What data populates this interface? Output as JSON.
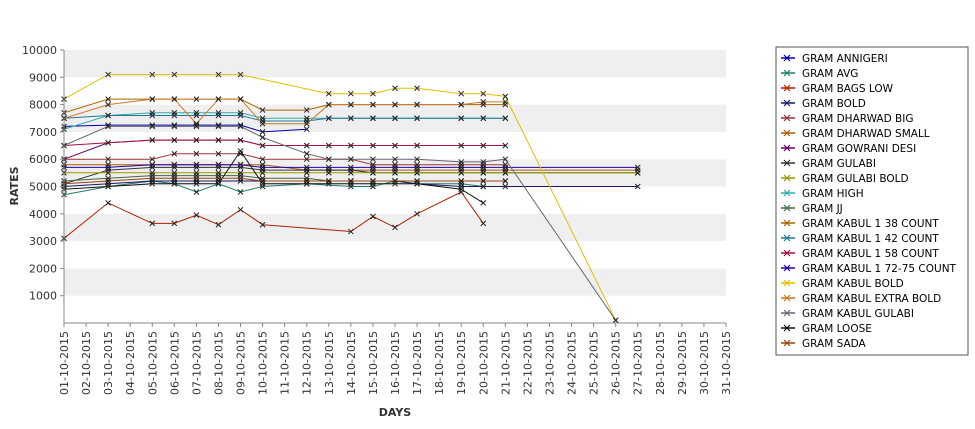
{
  "chart_data": {
    "type": "line",
    "xlabel": "DAYS",
    "ylabel": "RATES",
    "ylim": [
      0,
      10000
    ],
    "yticks": [
      1000,
      2000,
      3000,
      4000,
      5000,
      6000,
      7000,
      8000,
      9000,
      10000
    ],
    "grid": "alternating horizontal bands",
    "legend_position": "right",
    "categories": [
      "01-10-2015",
      "02-10-2015",
      "03-10-2015",
      "04-10-2015",
      "05-10-2015",
      "06-10-2015",
      "07-10-2015",
      "08-10-2015",
      "09-10-2015",
      "10-10-2015",
      "11-10-2015",
      "12-10-2015",
      "13-10-2015",
      "14-10-2015",
      "15-10-2015",
      "16-10-2015",
      "17-10-2015",
      "18-10-2015",
      "19-10-2015",
      "20-10-2015",
      "21-10-2015",
      "22-10-2015",
      "23-10-2015",
      "24-10-2015",
      "25-10-2015",
      "26-10-2015",
      "27-10-2015",
      "28-10-2015",
      "29-10-2015",
      "30-10-2015",
      "31-10-2015"
    ],
    "series": [
      {
        "name": "GRAM ANNIGERI",
        "color": "#0000aa",
        "values": [
          7200,
          null,
          7250,
          null,
          7250,
          7250,
          7250,
          7250,
          7250,
          7000,
          null,
          7100,
          null,
          null,
          null,
          null,
          null,
          null,
          null,
          null,
          null,
          null,
          null,
          null,
          null,
          null,
          null,
          null,
          null,
          null,
          null
        ]
      },
      {
        "name": "GRAM AVG",
        "color": "#1a7f6e",
        "values": [
          4700,
          null,
          5000,
          null,
          5200,
          5100,
          4800,
          5100,
          4800,
          5000,
          null,
          5100,
          null,
          5000,
          5000,
          5200,
          5100,
          null,
          5100,
          5000,
          null,
          null,
          null,
          null,
          null,
          null,
          null,
          null,
          null,
          null,
          null
        ]
      },
      {
        "name": "GRAM BAGS LOW",
        "color": "#aa2200",
        "values": [
          3100,
          null,
          4400,
          null,
          3650,
          3650,
          3950,
          3600,
          4150,
          3600,
          null,
          null,
          null,
          3350,
          3900,
          3500,
          4000,
          null,
          4800,
          3650,
          null,
          null,
          null,
          null,
          null,
          null,
          null,
          null,
          null,
          null,
          null
        ]
      },
      {
        "name": "GRAM BOLD",
        "color": "#1a1a66",
        "values": [
          5000,
          null,
          5100,
          null,
          5200,
          5200,
          5200,
          5200,
          5200,
          5200,
          null,
          5200,
          5200,
          5200,
          5200,
          5200,
          5100,
          null,
          5000,
          5000,
          5000,
          null,
          null,
          null,
          null,
          null,
          5000,
          null,
          null,
          null,
          null
        ]
      },
      {
        "name": "GRAM DHARWAD BIG",
        "color": "#993333",
        "values": [
          6000,
          null,
          6000,
          null,
          6000,
          6200,
          6200,
          6200,
          6200,
          6000,
          null,
          6000,
          6000,
          6000,
          5800,
          5800,
          5800,
          null,
          5800,
          5800,
          5800,
          null,
          null,
          null,
          null,
          null,
          null,
          null,
          null,
          null,
          null
        ]
      },
      {
        "name": "GRAM DHARWAD SMALL",
        "color": "#b35900",
        "values": [
          5800,
          null,
          5800,
          null,
          5800,
          5800,
          5800,
          5800,
          5800,
          5800,
          null,
          5600,
          5600,
          5600,
          5600,
          5600,
          5600,
          null,
          5600,
          5600,
          5600,
          null,
          null,
          null,
          null,
          null,
          5600,
          null,
          null,
          null,
          null
        ]
      },
      {
        "name": "GRAM GOWRANI DESI",
        "color": "#660066",
        "values": [
          6000,
          null,
          6600,
          null,
          6700,
          6700,
          6700,
          6700,
          6700,
          6500,
          null,
          6500,
          6500,
          6500,
          6500,
          6500,
          6500,
          null,
          6500,
          6500,
          6500,
          null,
          null,
          null,
          null,
          null,
          null,
          null,
          null,
          null,
          null
        ]
      },
      {
        "name": "GRAM GULABI",
        "color": "#333333",
        "values": [
          5100,
          null,
          5600,
          null,
          5700,
          5700,
          5700,
          5700,
          5700,
          5600,
          null,
          5600,
          5600,
          5600,
          5500,
          5500,
          5500,
          null,
          5500,
          5500,
          5500,
          null,
          null,
          null,
          null,
          null,
          5500,
          null,
          null,
          null,
          null
        ]
      },
      {
        "name": "GRAM GULABI BOLD",
        "color": "#999900",
        "values": [
          5500,
          null,
          5500,
          null,
          5500,
          5500,
          5500,
          5500,
          5500,
          5500,
          null,
          5500,
          5500,
          5500,
          5500,
          5500,
          5500,
          null,
          5500,
          5500,
          5500,
          null,
          null,
          null,
          null,
          null,
          5500,
          null,
          null,
          null,
          null
        ]
      },
      {
        "name": "GRAM HIGH",
        "color": "#33aaaa",
        "values": [
          7100,
          null,
          7600,
          null,
          7700,
          7700,
          7700,
          7700,
          7700,
          7500,
          null,
          7500,
          7500,
          7500,
          7500,
          7500,
          7500,
          null,
          7500,
          7500,
          7500,
          null,
          null,
          null,
          null,
          null,
          null,
          null,
          null,
          null,
          null
        ]
      },
      {
        "name": "GRAM JJ",
        "color": "#446644",
        "values": [
          5200,
          null,
          5300,
          null,
          5400,
          5400,
          5400,
          5400,
          5400,
          5300,
          null,
          5300,
          5200,
          5200,
          5200,
          5200,
          5200,
          null,
          5200,
          5200,
          5200,
          null,
          null,
          null,
          null,
          null,
          null,
          null,
          null,
          null,
          null
        ]
      },
      {
        "name": "GRAM KABUL 1 38 COUNT",
        "color": "#aa6600",
        "values": [
          7700,
          null,
          8200,
          null,
          8200,
          8200,
          8200,
          8200,
          8200,
          7800,
          null,
          7800,
          8000,
          8000,
          8000,
          8000,
          8000,
          null,
          8000,
          8000,
          8000,
          null,
          null,
          null,
          null,
          null,
          null,
          null,
          null,
          null,
          null
        ]
      },
      {
        "name": "GRAM KABUL 1 42 COUNT",
        "color": "#227799",
        "values": [
          7500,
          null,
          7600,
          null,
          7600,
          7600,
          7600,
          7600,
          7600,
          7400,
          null,
          7400,
          7500,
          7500,
          7500,
          7500,
          7500,
          null,
          7500,
          7500,
          7500,
          null,
          null,
          null,
          null,
          null,
          null,
          null,
          null,
          null,
          null
        ]
      },
      {
        "name": "GRAM KABUL 1 58 COUNT",
        "color": "#aa1144",
        "values": [
          6500,
          null,
          6600,
          null,
          6700,
          6700,
          6700,
          6700,
          6700,
          6500,
          null,
          6500,
          6500,
          6500,
          6500,
          6500,
          6500,
          null,
          6500,
          6500,
          6500,
          null,
          null,
          null,
          null,
          null,
          null,
          null,
          null,
          null,
          null
        ]
      },
      {
        "name": "GRAM KABUL 1 72-75 COUNT",
        "color": "#2200aa",
        "values": [
          5700,
          null,
          5700,
          null,
          5800,
          5800,
          5800,
          5800,
          5800,
          5700,
          null,
          5700,
          5700,
          5700,
          5700,
          5700,
          5700,
          null,
          5700,
          5700,
          5700,
          null,
          null,
          null,
          null,
          null,
          5700,
          null,
          null,
          null,
          null
        ]
      },
      {
        "name": "GRAM KABUL BOLD",
        "color": "#e0c000",
        "values": [
          8200,
          null,
          9100,
          null,
          9100,
          9100,
          null,
          9100,
          9100,
          null,
          null,
          null,
          8400,
          8400,
          8400,
          8600,
          8600,
          null,
          8400,
          8400,
          8300,
          null,
          null,
          null,
          null,
          100,
          null,
          null,
          null,
          null,
          null
        ]
      },
      {
        "name": "GRAM KABUL EXTRA BOLD",
        "color": "#cc7722",
        "values": [
          7500,
          null,
          8000,
          null,
          8200,
          8200,
          7300,
          8200,
          8200,
          7300,
          null,
          7300,
          8000,
          8000,
          8000,
          8000,
          8000,
          null,
          8000,
          8100,
          8100,
          null,
          null,
          null,
          null,
          null,
          null,
          null,
          null,
          null,
          null
        ]
      },
      {
        "name": "GRAM KABUL GULABI",
        "color": "#666677",
        "values": [
          6500,
          null,
          7200,
          null,
          7200,
          7200,
          7200,
          7200,
          7200,
          6800,
          null,
          6200,
          6000,
          6000,
          6000,
          6000,
          6000,
          null,
          5900,
          5900,
          6000,
          null,
          null,
          null,
          null,
          100,
          null,
          null,
          null,
          null,
          null
        ]
      },
      {
        "name": "GRAM LOOSE",
        "color": "#111111",
        "values": [
          4900,
          null,
          5000,
          null,
          5100,
          5100,
          5100,
          5100,
          6300,
          5100,
          null,
          5100,
          5100,
          5100,
          5100,
          5100,
          5100,
          null,
          4900,
          4400,
          null,
          null,
          null,
          null,
          null,
          null,
          null,
          null,
          null,
          null,
          null
        ]
      },
      {
        "name": "GRAM SADA",
        "color": "#994411",
        "values": [
          5100,
          null,
          5200,
          null,
          5300,
          5300,
          5300,
          5300,
          5300,
          5200,
          null,
          5200,
          5200,
          5200,
          5200,
          5200,
          5200,
          null,
          5200,
          5200,
          5200,
          null,
          null,
          null,
          null,
          null,
          null,
          null,
          null,
          null,
          null
        ]
      }
    ]
  }
}
